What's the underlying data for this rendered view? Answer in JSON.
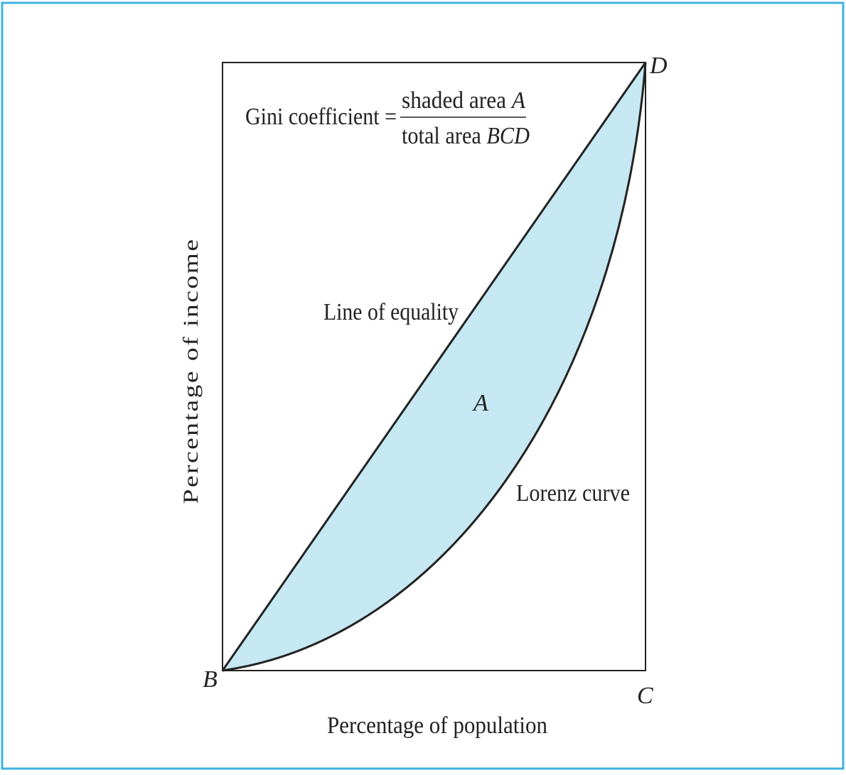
{
  "title": {
    "lhs": "Gini coefficient =",
    "numerator": {
      "text": "shaded area",
      "symbol": "A"
    },
    "denominator": {
      "text": "total area",
      "symbol": "BCD"
    }
  },
  "labels": {
    "equality": "Line of equality",
    "area": "A",
    "lorenz": "Lorenz curve"
  },
  "points": {
    "b": "B",
    "c": "C",
    "d": "D"
  },
  "axes": {
    "y": "Percentage of income",
    "x": "Percentage of population"
  }
}
